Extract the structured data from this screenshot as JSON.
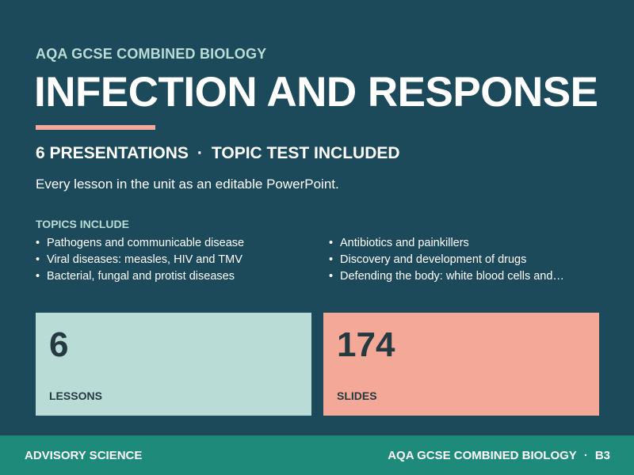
{
  "header": {
    "eyebrow": "AQA GCSE COMBINED BIOLOGY",
    "title": "INFECTION AND RESPONSE",
    "meta_presentations": "6 PRESENTATIONS",
    "meta_separator": "·",
    "meta_test": "TOPIC TEST INCLUDED",
    "description": "Every lesson in the unit as an editable PowerPoint."
  },
  "topics": {
    "heading": "TOPICS INCLUDE",
    "bullet": "•",
    "left": [
      "Pathogens and communicable disease",
      "Viral diseases: measles, HIV and TMV",
      "Bacterial, fungal and protist diseases"
    ],
    "right": [
      "Antibiotics and painkillers",
      "Discovery and development of drugs",
      "Defending the body: white blood cells and…"
    ]
  },
  "stats": [
    {
      "value": "6",
      "label": "LESSONS"
    },
    {
      "value": "174",
      "label": "SLIDES"
    }
  ],
  "footer": {
    "brand": "ADVISORY SCIENCE",
    "course": "AQA GCSE COMBINED BIOLOGY",
    "separator": "·",
    "code": "B3"
  },
  "colors": {
    "background": "#1d4a5a",
    "accent_mint": "#b9ddd6",
    "accent_salmon": "#f4a897",
    "footer": "#1d8a7a",
    "card_text": "#253940"
  }
}
